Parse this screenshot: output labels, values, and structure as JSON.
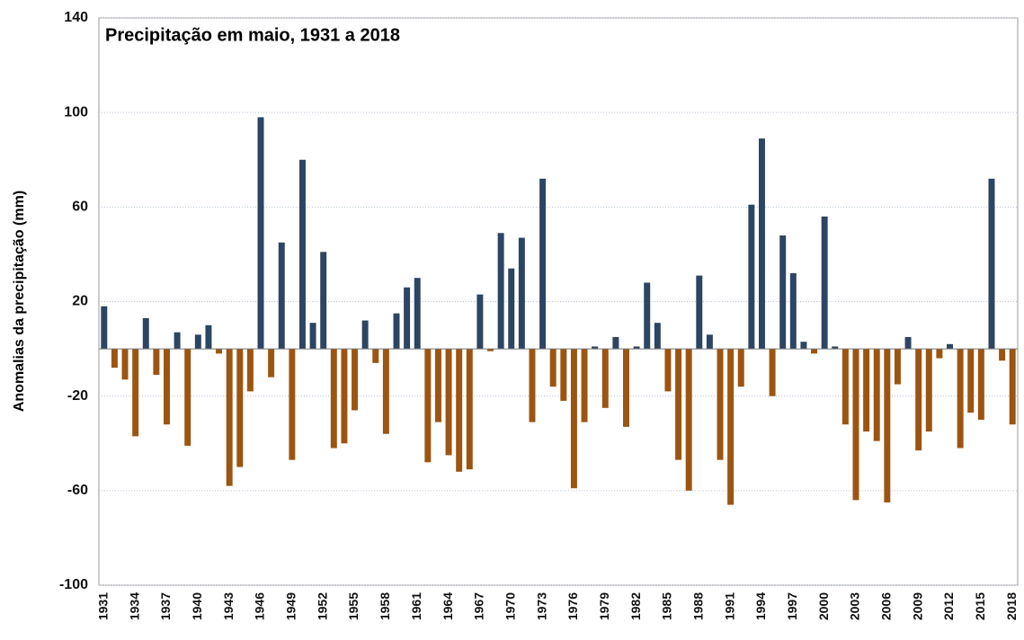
{
  "chart_data": {
    "type": "bar",
    "title": "Precipitação em maio, 1931 a 2018",
    "y_label": "Anomalias da precipitação (mm)",
    "categories": [
      "1931",
      null,
      null,
      "1934",
      null,
      null,
      "1937",
      null,
      null,
      "1940",
      null,
      null,
      "1943",
      null,
      null,
      "1946",
      null,
      null,
      "1949",
      null,
      null,
      "1952",
      null,
      null,
      "1955",
      null,
      null,
      "1958",
      null,
      null,
      "1961",
      null,
      null,
      "1964",
      null,
      null,
      "1967",
      null,
      null,
      "1970",
      null,
      null,
      "1973",
      null,
      null,
      "1976",
      null,
      null,
      "1979",
      null,
      null,
      "1982",
      null,
      null,
      "1985",
      null,
      null,
      "1988",
      null,
      null,
      "1991",
      null,
      null,
      "1994",
      null,
      null,
      "1997",
      null,
      null,
      "2000",
      null,
      null,
      "2003",
      null,
      null,
      "2006",
      null,
      null,
      "2009",
      null,
      null,
      "2012",
      null,
      null,
      "2015",
      null,
      null,
      "2018"
    ],
    "values": [
      18,
      -8,
      -13,
      -37,
      13,
      -11,
      -32,
      7,
      -41,
      6,
      10,
      -2,
      -58,
      -50,
      -18,
      98,
      -12,
      45,
      -47,
      80,
      11,
      41,
      -42,
      -40,
      -26,
      12,
      -6,
      -36,
      15,
      26,
      30,
      -48,
      -31,
      -45,
      -52,
      -51,
      23,
      -1,
      49,
      34,
      47,
      -31,
      72,
      -16,
      -22,
      -59,
      -31,
      1,
      -25,
      5,
      -33,
      1,
      28,
      11,
      -18,
      -47,
      -60,
      31,
      6,
      -47,
      -66,
      -16,
      61,
      89,
      -20,
      48,
      32,
      3,
      -2,
      56,
      1,
      -32,
      -64,
      -35,
      -39,
      -65,
      -15,
      5,
      -43,
      -35,
      -4,
      2,
      -42,
      -27,
      -30,
      72,
      -5,
      -32
    ],
    "positive_color": "#2c4563",
    "negative_color": "#9c5511",
    "ylim": [
      -100,
      140
    ],
    "yticks": [
      -100,
      -60,
      -20,
      20,
      60,
      100,
      140
    ],
    "grid": true
  }
}
